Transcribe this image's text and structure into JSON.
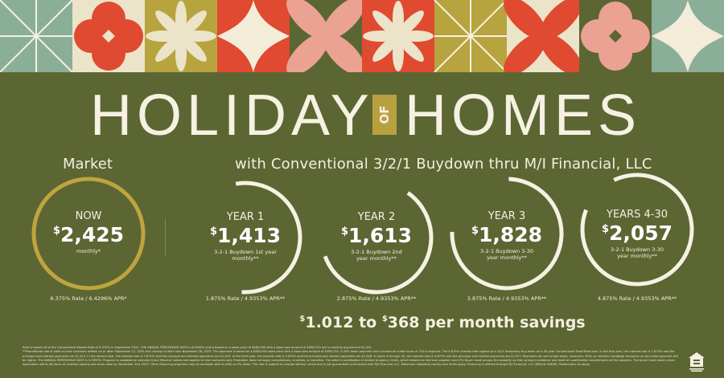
{
  "colors": {
    "background": "#5b6633",
    "gold": "#bfa43e",
    "cream": "#f4efdf",
    "red": "#df4a30",
    "sage": "#8aae98",
    "mustard": "#b7a43f",
    "pink": "#eba293",
    "tile_cream": "#ece4c9"
  },
  "tiles": [
    "sage-star-lines",
    "red-quatrefoil-on-cream",
    "cream-flower-on-mustard",
    "cream-star-on-red",
    "pink-petals-on-olive",
    "cream-flower-on-red",
    "white-star-lines-on-mustard",
    "red-petals-on-cream",
    "pink-quatrefoil-on-olive",
    "cream-star-on-sage"
  ],
  "title": {
    "left": "HOLIDAY",
    "of": "OF",
    "right": "HOMES"
  },
  "market_label": "Market",
  "subtitle": "with Conventional 3/2/1 Buydown thru M/I Financial, LLC",
  "cards": [
    {
      "label": "NOW",
      "currency": "$",
      "amount": "2,425",
      "sub": "monthly*",
      "rate": "6.375% Rate / 6.4296% APR*"
    },
    {
      "label": "YEAR 1",
      "currency": "$",
      "amount": "1,413",
      "sub": "3-2-1 Buydown 1st year monthly**",
      "rate": "1.875% Rate / 4.9353% APR**"
    },
    {
      "label": "YEAR 2",
      "currency": "$",
      "amount": "1,613",
      "sub": "3-2-1 Buydown 2nd year monthly**",
      "rate": "2.875% Rate / 4.9353% APR**"
    },
    {
      "label": "YEAR 3",
      "currency": "$",
      "amount": "1,828",
      "sub": "3-2-1 Buydown 3-30 year monthly**",
      "rate": "3.875% Rate / 4.9353% APR**"
    },
    {
      "label": "YEARS 4-30",
      "currency": "$",
      "amount": "2,057",
      "sub": "3-2-1 Buydown 3-30 year monthly**",
      "rate": "4.875% Rate / 4.9353% APR**"
    }
  ],
  "savings": {
    "c1": "$",
    "from": "1.012",
    "mid": " to ",
    "c2": "$",
    "to": "368",
    "tail": " per month savings"
  },
  "fine_print": [
    "Rate is based off of the Conventional Market Rate of 6.375% in September 2025. THE ANNUAL PERCENTAGE RATE is 6.4296% and is based on a sales price of $485,900 with a base loan amount of $388,720 and a monthly payment of $2,425.",
    "**Promotional rate is valid on new contracts written on or after September 12, 2025 and closing no later than November 28, 2025. The payment is based on a $485,900 sales price with a base loan amount of $388,720. A 20% down payment and a minimum credit score of 720 is required. The 4.875% interest rate applies to a 3/2/1 temporary buy-down on a 30-year Conventional Fixed Rate loan. In the first year, the interest rate is 1.875% and the principal and interest payments are $1,413. In the second year, the interest rate is 2.875% and the principal and interest payments are $1,613. In the third year, the interest rate is 3.875% and the principal and interest payments are $1,828. In years 4 through 30, the interest rate is 4.875% and the principal and interest payments are $2,057. Payments do not include taxes, insurance, HOA, or monthly mortgage insurance so your total payment will be higher. The ANNUAL PERCENTAGE RATE is 4.9353%. Program is available on selected Quick Move-in homes and applies to new contracts only. Promotion does not apply cancellations, re-writes, or transfers. The seller's contribution is limited to agency limits, which depend on the loan program and LTV. Buyer must occupy the property as their primary residence and meet all qualification requirements of the program. The buyer must make a loan application within 48 hours of contract signing and must close by December 31st 2025. Other financing programs may be available with as little as 3% down. The rate is subject to change without notice and is not guaranteed until locked with M/I Financial, LLC. Maximum allowable county loan limits apply. Financing is offered through M/I Financial, LLC (NMLS# 40698). Restrictions do apply."
  ],
  "equal_housing_icon": "equal-housing-lender-icon"
}
